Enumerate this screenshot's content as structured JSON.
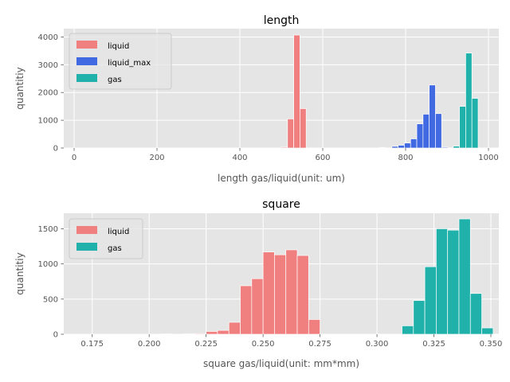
{
  "chart_data": [
    {
      "type": "histogram",
      "title": "length",
      "xlabel": "length gas/liquid(unit: um)",
      "ylabel": "quantitiy",
      "xlim": [
        -25,
        1025
      ],
      "ylim": [
        0,
        4300
      ],
      "xticks": [
        0,
        200,
        400,
        600,
        800,
        1000
      ],
      "yticks": [
        0,
        1000,
        2000,
        3000,
        4000
      ],
      "grid": true,
      "legend": "top-left",
      "bin_width": 15,
      "series": [
        {
          "name": "liquid",
          "color": "#f08080",
          "bins": [
            {
              "x0": 500,
              "x1": 515,
              "y": 30
            },
            {
              "x0": 515,
              "x1": 530,
              "y": 1050
            },
            {
              "x0": 530,
              "x1": 545,
              "y": 4070
            },
            {
              "x0": 545,
              "x1": 560,
              "y": 1420
            }
          ]
        },
        {
          "name": "liquid_max",
          "color": "#4169e1",
          "bins": [
            {
              "x0": 737,
              "x1": 752,
              "y": 20
            },
            {
              "x0": 767,
              "x1": 782,
              "y": 60
            },
            {
              "x0": 782,
              "x1": 797,
              "y": 100
            },
            {
              "x0": 797,
              "x1": 812,
              "y": 180
            },
            {
              "x0": 812,
              "x1": 827,
              "y": 330
            },
            {
              "x0": 827,
              "x1": 842,
              "y": 870
            },
            {
              "x0": 842,
              "x1": 857,
              "y": 1220
            },
            {
              "x0": 857,
              "x1": 872,
              "y": 2270
            },
            {
              "x0": 872,
              "x1": 887,
              "y": 1240
            },
            {
              "x0": 887,
              "x1": 902,
              "y": 30
            }
          ]
        },
        {
          "name": "gas",
          "color": "#20b2aa",
          "bins": [
            {
              "x0": 915,
              "x1": 930,
              "y": 70
            },
            {
              "x0": 930,
              "x1": 945,
              "y": 1500
            },
            {
              "x0": 945,
              "x1": 960,
              "y": 3420
            },
            {
              "x0": 960,
              "x1": 975,
              "y": 1790
            }
          ]
        }
      ]
    },
    {
      "type": "histogram",
      "title": "square",
      "xlabel": "square gas/liquid(unit: mm*mm)",
      "ylabel": "quantitiy",
      "xlim": [
        0.1625,
        0.3535
      ],
      "ylim": [
        0,
        1720
      ],
      "xticks": [
        0.175,
        0.2,
        0.225,
        0.25,
        0.275,
        0.3,
        0.325,
        0.35
      ],
      "xtick_labels": [
        "0.175",
        "0.200",
        "0.225",
        "0.250",
        "0.275",
        "0.300",
        "0.325",
        "0.350"
      ],
      "yticks": [
        0,
        500,
        1000,
        1500
      ],
      "grid": true,
      "legend": "top-left",
      "bin_width": 0.005,
      "series": [
        {
          "name": "liquid",
          "color": "#f08080",
          "bins": [
            {
              "x0": 0.205,
              "x1": 0.21,
              "y": 5
            },
            {
              "x0": 0.215,
              "x1": 0.22,
              "y": 5
            },
            {
              "x0": 0.22,
              "x1": 0.225,
              "y": 10
            },
            {
              "x0": 0.225,
              "x1": 0.23,
              "y": 40
            },
            {
              "x0": 0.23,
              "x1": 0.235,
              "y": 55
            },
            {
              "x0": 0.235,
              "x1": 0.24,
              "y": 170
            },
            {
              "x0": 0.24,
              "x1": 0.245,
              "y": 690
            },
            {
              "x0": 0.245,
              "x1": 0.25,
              "y": 790
            },
            {
              "x0": 0.25,
              "x1": 0.255,
              "y": 1170
            },
            {
              "x0": 0.255,
              "x1": 0.26,
              "y": 1130
            },
            {
              "x0": 0.26,
              "x1": 0.265,
              "y": 1200
            },
            {
              "x0": 0.265,
              "x1": 0.27,
              "y": 1120
            },
            {
              "x0": 0.27,
              "x1": 0.275,
              "y": 210
            }
          ]
        },
        {
          "name": "gas",
          "color": "#20b2aa",
          "bins": [
            {
              "x0": 0.311,
              "x1": 0.316,
              "y": 120
            },
            {
              "x0": 0.316,
              "x1": 0.321,
              "y": 480
            },
            {
              "x0": 0.321,
              "x1": 0.326,
              "y": 960
            },
            {
              "x0": 0.326,
              "x1": 0.331,
              "y": 1500
            },
            {
              "x0": 0.331,
              "x1": 0.336,
              "y": 1480
            },
            {
              "x0": 0.336,
              "x1": 0.341,
              "y": 1640
            },
            {
              "x0": 0.341,
              "x1": 0.346,
              "y": 580
            },
            {
              "x0": 0.346,
              "x1": 0.351,
              "y": 90
            }
          ]
        }
      ]
    }
  ]
}
